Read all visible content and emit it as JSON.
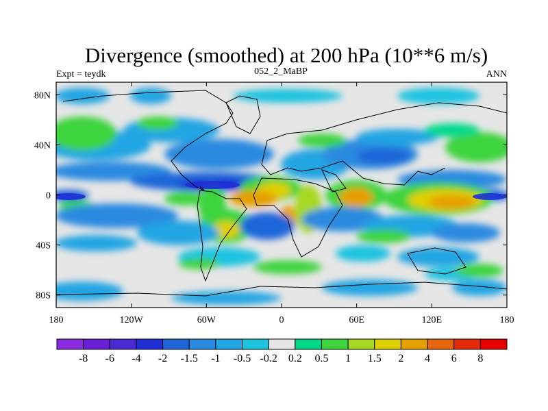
{
  "chart_data": {
    "type": "heatmap",
    "title": "Divergence (smoothed) at 200 hPa (10**6 m/s)",
    "subtitle_left": "Expt = teydk",
    "subtitle_center": "052_2_MaBP",
    "subtitle_right": "ANN",
    "xlabel": "",
    "ylabel": "",
    "xlim": [
      -180,
      180
    ],
    "ylim": [
      -90,
      90
    ],
    "x_ticks": [
      {
        "value": -180,
        "label": "180"
      },
      {
        "value": -120,
        "label": "120W"
      },
      {
        "value": -60,
        "label": "60W"
      },
      {
        "value": 0,
        "label": "0"
      },
      {
        "value": 60,
        "label": "60E"
      },
      {
        "value": 120,
        "label": "120E"
      },
      {
        "value": 180,
        "label": "180"
      }
    ],
    "y_ticks": [
      {
        "value": 80,
        "label": "80N"
      },
      {
        "value": 40,
        "label": "40N"
      },
      {
        "value": 0,
        "label": "0"
      },
      {
        "value": -40,
        "label": "40S"
      },
      {
        "value": -80,
        "label": "80S"
      }
    ],
    "colorbar": {
      "levels": [
        "-8",
        "-6",
        "-4",
        "-2",
        "-1.5",
        "-1",
        "-0.5",
        "-0.2",
        "0.2",
        "0.5",
        "1",
        "1.5",
        "2",
        "4",
        "6",
        "8"
      ],
      "colors": [
        "#8a2be2",
        "#6a1fd6",
        "#4b2ad4",
        "#1e2fd6",
        "#1f66d9",
        "#2a8ae0",
        "#22a5e3",
        "#1ec3e0",
        "#e6e6e6",
        "#00d98a",
        "#3dd43d",
        "#a6d820",
        "#e0cf00",
        "#e69f00",
        "#e8650f",
        "#e62a0a",
        "#e60000"
      ]
    }
  }
}
